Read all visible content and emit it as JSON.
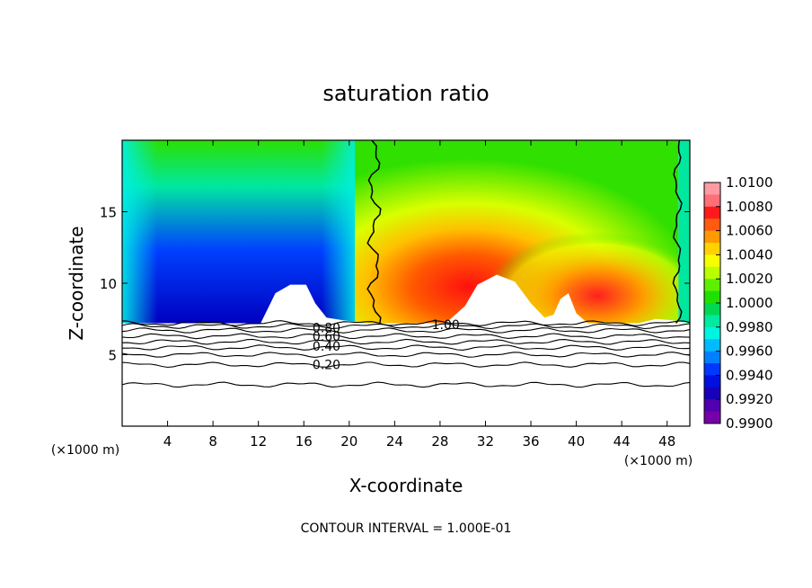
{
  "chart_data": {
    "type": "heatmap",
    "title": "saturation ratio",
    "xlabel": "X-coordinate",
    "ylabel": "Z-coordinate",
    "x_unit_label": "(×1000 m)",
    "y_unit_label": "(×1000 m)",
    "xlim": [
      0,
      50
    ],
    "ylim": [
      0,
      20
    ],
    "x_ticks": [
      4,
      8,
      12,
      16,
      20,
      24,
      28,
      32,
      36,
      40,
      44,
      48
    ],
    "x_tick_labels": [
      "4",
      "8",
      "12",
      "16",
      "20",
      "24",
      "28",
      "32",
      "36",
      "40",
      "44",
      "48"
    ],
    "y_ticks": [
      5,
      10,
      15
    ],
    "y_tick_labels": [
      "5",
      "10",
      "15"
    ],
    "colorbar": {
      "min": 0.99,
      "max": 1.01,
      "labels": [
        "1.0100",
        "1.0080",
        "1.0060",
        "1.0040",
        "1.0020",
        "1.0000",
        "0.9980",
        "0.9960",
        "0.9940",
        "0.9920",
        "0.9900"
      ],
      "colors": [
        "#ff9aa5",
        "#ff6f77",
        "#ff1a1a",
        "#ff5a10",
        "#ff9a00",
        "#ffd200",
        "#f5ff00",
        "#b8ff00",
        "#5cf000",
        "#1fe000",
        "#00d852",
        "#00eaa0",
        "#00f5e0",
        "#00bbff",
        "#0080ff",
        "#0038ff",
        "#0010e0",
        "#1800b8",
        "#5000b0",
        "#7800a8"
      ]
    },
    "filled_region_bottom_z": 7.2,
    "regions": [
      {
        "x_start": 0,
        "x_end": 20.5,
        "description_level": "below 1.0000",
        "value_min": 0.99,
        "value_max": 0.998
      },
      {
        "x_start": 20.5,
        "x_end": 49,
        "description_level": "above 1.0000",
        "value_min": 1.0,
        "value_max": 1.01
      },
      {
        "x_start": 49,
        "x_end": 50,
        "description_level": "below 1.0000",
        "value_min": 0.998,
        "value_max": 1.0
      }
    ],
    "contour_levels_shown": [
      0.2,
      0.4,
      0.6,
      0.8,
      1.0
    ],
    "contour_labels": [
      "0.20",
      "0.40",
      "0.60",
      "0.80",
      "1.00"
    ],
    "contour_line_z": [
      2.9,
      4.3,
      5.0,
      5.5,
      5.9,
      6.3,
      6.7,
      7.0,
      7.2
    ],
    "footer": "CONTOUR INTERVAL = 1.000E-01"
  }
}
